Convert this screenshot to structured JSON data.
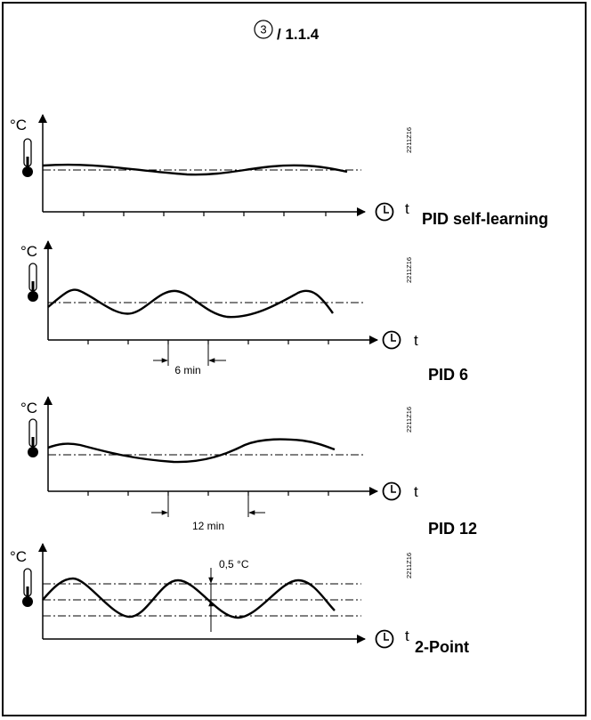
{
  "header": {
    "circled_number": "3",
    "reference": "/ 1.1.4"
  },
  "panels": [
    {
      "id": "pid-self-learning",
      "unit_label": "°C",
      "time_label": "t",
      "mode_label": "PID self-learning",
      "figure_code": "2211Z16"
    },
    {
      "id": "pid-6",
      "unit_label": "°C",
      "time_label": "t",
      "mode_label": "PID 6",
      "figure_code": "2211Z16",
      "interval_label": "6 min"
    },
    {
      "id": "pid-12",
      "unit_label": "°C",
      "time_label": "t",
      "mode_label": "PID 12",
      "figure_code": "2211Z16",
      "interval_label": "12 min"
    },
    {
      "id": "two-point",
      "unit_label": "°C",
      "time_label": "t",
      "mode_label": "2-Point",
      "figure_code": "2211Z16",
      "hysteresis_label": "0,5 °C"
    }
  ],
  "icons": {
    "thermometer": "thermometer-icon",
    "clock": "clock-icon"
  },
  "colors": {
    "ink": "#000000",
    "background": "#ffffff"
  }
}
